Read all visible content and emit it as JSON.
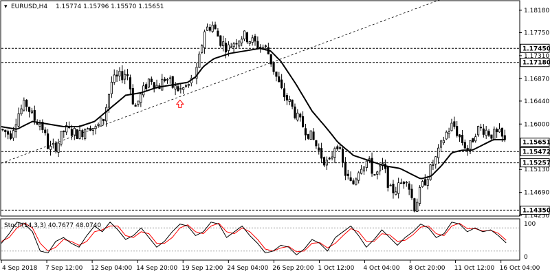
{
  "chart_data": {
    "type": "candlestick",
    "title": "EURUSD,H4",
    "ohlc_header": "1.15774 1.15796 1.15570 1.15651",
    "colors": {
      "bull": "#ffffff",
      "bear": "#000000",
      "outline": "#000000",
      "ma": "#000000",
      "stoch_main": "#000000",
      "stoch_signal": "#ff0000",
      "arrow": "#ff0000",
      "badge_bg": "#ffffff"
    },
    "price_axis": {
      "min": 1.1425,
      "max": 1.1835,
      "ticks": [
        "1.18180",
        "1.17750",
        "1.17310",
        "1.16870",
        "1.16440",
        "1.16000",
        "1.15130",
        "1.14690",
        "1.14250"
      ]
    },
    "horizontal_levels": [
      {
        "value": 1.1745,
        "label": "1.17450"
      },
      {
        "value": 1.1718,
        "label": "1.17180"
      },
      {
        "value": 1.15472,
        "label": "1.15472"
      },
      {
        "value": 1.15257,
        "label": "1.15257"
      },
      {
        "value": 1.1435,
        "label": "1.14350"
      }
    ],
    "current_price": {
      "value": 1.15651,
      "label": "1.15651"
    },
    "trendline": {
      "start": [
        0,
        1.1525
      ],
      "end": [
        0.86,
        1.1843
      ]
    },
    "arrow": {
      "x_fraction": 0.345,
      "price": 1.1638
    },
    "x_tick_labels": [
      "4 Sep 2018",
      "7 Sep 12:00",
      "12 Sep 04:00",
      "14 Sep 20:00",
      "19 Sep 12:00",
      "24 Sep 04:00",
      "26 Sep 20:00",
      "1 Oct 12:00",
      "4 Oct 04:00",
      "8 Oct 20:00",
      "11 Oct 12:00",
      "16 Oct 04:00"
    ],
    "close_path": [
      [
        0,
        1.159
      ],
      [
        0.02,
        1.158
      ],
      [
        0.035,
        1.162
      ],
      [
        0.05,
        1.164
      ],
      [
        0.065,
        1.161
      ],
      [
        0.08,
        1.16
      ],
      [
        0.095,
        1.155
      ],
      [
        0.11,
        1.156
      ],
      [
        0.125,
        1.159
      ],
      [
        0.14,
        1.1585
      ],
      [
        0.155,
        1.158
      ],
      [
        0.17,
        1.16
      ],
      [
        0.185,
        1.159
      ],
      [
        0.2,
        1.161
      ],
      [
        0.215,
        1.168
      ],
      [
        0.23,
        1.169
      ],
      [
        0.245,
        1.17
      ],
      [
        0.26,
        1.163
      ],
      [
        0.275,
        1.166
      ],
      [
        0.29,
        1.169
      ],
      [
        0.305,
        1.167
      ],
      [
        0.32,
        1.169
      ],
      [
        0.335,
        1.167
      ],
      [
        0.35,
        1.1665
      ],
      [
        0.365,
        1.1675
      ],
      [
        0.38,
        1.17
      ],
      [
        0.395,
        1.178
      ],
      [
        0.41,
        1.179
      ],
      [
        0.425,
        1.176
      ],
      [
        0.44,
        1.1745
      ],
      [
        0.455,
        1.176
      ],
      [
        0.47,
        1.177
      ],
      [
        0.485,
        1.176
      ],
      [
        0.5,
        1.175
      ],
      [
        0.515,
        1.1745
      ],
      [
        0.53,
        1.17
      ],
      [
        0.545,
        1.166
      ],
      [
        0.56,
        1.164
      ],
      [
        0.575,
        1.161
      ],
      [
        0.59,
        1.159
      ],
      [
        0.605,
        1.157
      ],
      [
        0.62,
        1.154
      ],
      [
        0.635,
        1.152
      ],
      [
        0.65,
        1.157
      ],
      [
        0.665,
        1.151
      ],
      [
        0.68,
        1.148
      ],
      [
        0.695,
        1.152
      ],
      [
        0.71,
        1.153
      ],
      [
        0.725,
        1.15
      ],
      [
        0.74,
        1.152
      ],
      [
        0.755,
        1.147
      ],
      [
        0.77,
        1.148
      ],
      [
        0.785,
        1.15
      ],
      [
        0.8,
        1.144
      ],
      [
        0.815,
        1.148
      ],
      [
        0.83,
        1.151
      ],
      [
        0.845,
        1.154
      ],
      [
        0.86,
        1.158
      ],
      [
        0.875,
        1.16
      ],
      [
        0.89,
        1.157
      ],
      [
        0.905,
        1.155
      ],
      [
        0.92,
        1.159
      ],
      [
        0.935,
        1.159
      ],
      [
        0.95,
        1.158
      ],
      [
        0.965,
        1.158
      ],
      [
        0.975,
        1.1565
      ]
    ],
    "ma_path": [
      [
        0,
        1.1595
      ],
      [
        0.03,
        1.159
      ],
      [
        0.06,
        1.1605
      ],
      [
        0.09,
        1.16
      ],
      [
        0.12,
        1.1595
      ],
      [
        0.15,
        1.1595
      ],
      [
        0.18,
        1.1605
      ],
      [
        0.21,
        1.163
      ],
      [
        0.24,
        1.1655
      ],
      [
        0.27,
        1.166
      ],
      [
        0.3,
        1.167
      ],
      [
        0.33,
        1.1675
      ],
      [
        0.36,
        1.168
      ],
      [
        0.375,
        1.169
      ],
      [
        0.39,
        1.171
      ],
      [
        0.41,
        1.1725
      ],
      [
        0.44,
        1.1735
      ],
      [
        0.47,
        1.174
      ],
      [
        0.5,
        1.1745
      ],
      [
        0.52,
        1.174
      ],
      [
        0.54,
        1.172
      ],
      [
        0.57,
        1.1675
      ],
      [
        0.6,
        1.1625
      ],
      [
        0.63,
        1.159
      ],
      [
        0.65,
        1.1565
      ],
      [
        0.68,
        1.154
      ],
      [
        0.71,
        1.153
      ],
      [
        0.74,
        1.152
      ],
      [
        0.77,
        1.1515
      ],
      [
        0.79,
        1.1505
      ],
      [
        0.81,
        1.1495
      ],
      [
        0.83,
        1.15
      ],
      [
        0.85,
        1.152
      ],
      [
        0.87,
        1.1545
      ],
      [
        0.89,
        1.155
      ],
      [
        0.91,
        1.155
      ],
      [
        0.93,
        1.156
      ],
      [
        0.95,
        1.157
      ],
      [
        0.975,
        1.157
      ]
    ],
    "stochastic": {
      "label": "Stoch(14,3,3) 40.7677 48.0740",
      "levels": [
        "100",
        "0"
      ],
      "reference_levels": [
        80,
        20
      ],
      "main": [
        40,
        65,
        95,
        90,
        70,
        20,
        15,
        45,
        55,
        40,
        30,
        60,
        85,
        70,
        95,
        75,
        50,
        60,
        80,
        55,
        30,
        45,
        70,
        90,
        85,
        60,
        70,
        95,
        90,
        55,
        70,
        85,
        60,
        40,
        15,
        20,
        35,
        30,
        10,
        25,
        50,
        40,
        20,
        55,
        70,
        85,
        60,
        30,
        50,
        75,
        55,
        35,
        55,
        70,
        90,
        80,
        55,
        65,
        95,
        90,
        70,
        80,
        70,
        75,
        60,
        41
      ],
      "signal": [
        45,
        55,
        80,
        92,
        80,
        40,
        20,
        30,
        50,
        45,
        35,
        45,
        70,
        75,
        85,
        85,
        60,
        55,
        70,
        65,
        40,
        40,
        55,
        80,
        88,
        70,
        65,
        85,
        92,
        70,
        65,
        80,
        70,
        50,
        25,
        20,
        28,
        32,
        18,
        20,
        40,
        42,
        28,
        40,
        60,
        78,
        70,
        45,
        45,
        65,
        62,
        45,
        48,
        62,
        82,
        85,
        65,
        60,
        85,
        92,
        78,
        78,
        72,
        74,
        66,
        48
      ]
    }
  }
}
